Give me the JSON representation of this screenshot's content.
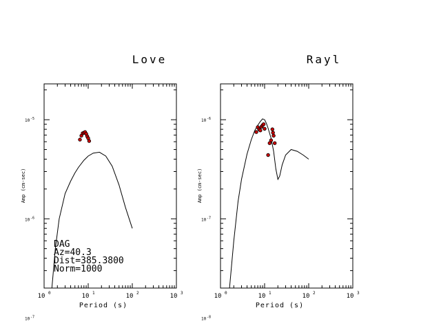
{
  "station": {
    "code": "DAG",
    "az": "Az=40.3",
    "dist": "Dist=385.3800",
    "norm": "Norm=1000"
  },
  "chart_data": [
    {
      "type": "line",
      "title": "Love",
      "xlabel": "Period (s)",
      "ylabel": "Amp (cm-sec)",
      "x_scale": "log",
      "y_scale": "log",
      "xlim": [
        1,
        1000
      ],
      "ylim": [
        2e-07,
        2.3e-05
      ],
      "x_ticks": [
        {
          "base": "10",
          "exp": "0"
        },
        {
          "base": "10",
          "exp": "1"
        },
        {
          "base": "10",
          "exp": "2"
        },
        {
          "base": "10",
          "exp": "3"
        }
      ],
      "y_ticks": [
        {
          "value": 1e-05,
          "base": "10",
          "exp": "-5"
        },
        {
          "value": 1e-06,
          "base": "10",
          "exp": "-6"
        },
        {
          "value": 1e-07,
          "base": "10",
          "exp": "-7"
        }
      ],
      "series": [
        {
          "kind": "line",
          "x": [
            1.5,
            1.8,
            2.2,
            3,
            4,
            5,
            6,
            8,
            10,
            13,
            18,
            25,
            35,
            50,
            70,
            100
          ],
          "y": [
            2e-07,
            5e-07,
            1e-06,
            1.8e-06,
            2.4e-06,
            2.9e-06,
            3.3e-06,
            3.9e-06,
            4.3e-06,
            4.6e-06,
            4.7e-06,
            4.3e-06,
            3.4e-06,
            2.2e-06,
            1.3e-06,
            8e-07
          ]
        },
        {
          "kind": "scatter",
          "color": "#cc0000",
          "x": [
            6.5,
            7.0,
            7.5,
            8.0,
            8.5,
            9.0,
            9.5,
            10.0,
            10.5
          ],
          "y": [
            6.3e-06,
            6.9e-06,
            7.3e-06,
            7.4e-06,
            7.5e-06,
            7.2e-06,
            6.8e-06,
            6.5e-06,
            6.1e-06
          ]
        }
      ]
    },
    {
      "type": "line",
      "title": "Rayl",
      "xlabel": "Period (s)",
      "ylabel": "Amp (cm-sec)",
      "x_scale": "log",
      "y_scale": "log",
      "xlim": [
        1,
        1000
      ],
      "ylim": [
        2e-08,
        2.3e-06
      ],
      "x_ticks": [
        {
          "base": "10",
          "exp": "0"
        },
        {
          "base": "10",
          "exp": "1"
        },
        {
          "base": "10",
          "exp": "2"
        },
        {
          "base": "10",
          "exp": "3"
        }
      ],
      "y_ticks": [
        {
          "value": 1e-06,
          "base": "10",
          "exp": "-6"
        },
        {
          "value": 1e-07,
          "base": "10",
          "exp": "-7"
        },
        {
          "value": 1e-08,
          "base": "10",
          "exp": "-8"
        }
      ],
      "series": [
        {
          "kind": "line",
          "x": [
            1.6,
            2.0,
            2.5,
            3,
            4,
            5,
            6,
            7,
            8,
            9,
            10,
            11,
            12,
            14,
            16,
            18,
            20,
            22,
            25,
            30,
            40,
            55,
            75,
            100
          ],
          "y": [
            2e-08,
            6e-08,
            1.5e-07,
            2.5e-07,
            4.5e-07,
            6.3e-07,
            7.8e-07,
            8.8e-07,
            9.6e-07,
            1.02e-06,
            1e-06,
            9.2e-07,
            8.2e-07,
            6.5e-07,
            4.8e-07,
            3.2e-07,
            2.5e-07,
            2.7e-07,
            3.5e-07,
            4.4e-07,
            5e-07,
            4.8e-07,
            4.4e-07,
            4e-07
          ]
        },
        {
          "kind": "scatter",
          "color": "#cc0000",
          "x": [
            6.5,
            7.0,
            7.5,
            8.0,
            8.5,
            9.0,
            9.5,
            10.0,
            12.0,
            13.0,
            14.0,
            15.0,
            15.5,
            16.0,
            17.0
          ],
          "y": [
            7.5e-07,
            8.4e-07,
            8e-07,
            7.8e-07,
            8.5e-07,
            8.8e-07,
            9e-07,
            8.1e-07,
            4.4e-07,
            5.8e-07,
            6.2e-07,
            8e-07,
            7.4e-07,
            6.9e-07,
            5.8e-07
          ]
        }
      ]
    }
  ]
}
